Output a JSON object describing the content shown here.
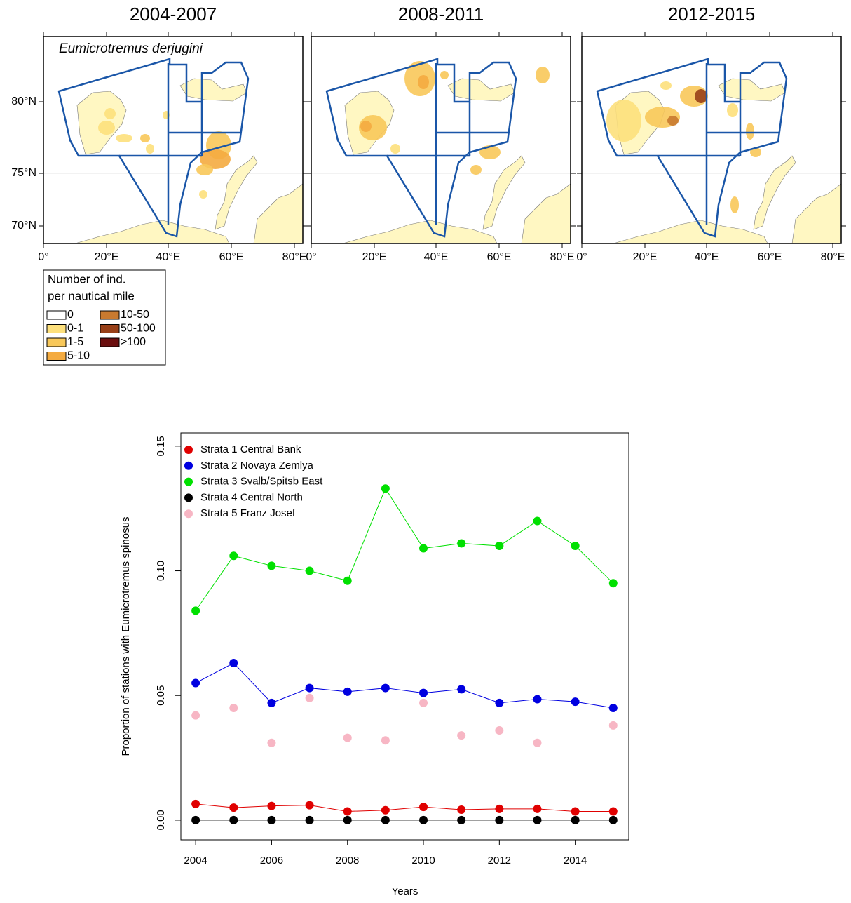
{
  "maps": {
    "panels": [
      {
        "title": "2004-2007"
      },
      {
        "title": "2008-2011"
      },
      {
        "title": "2012-2015"
      }
    ],
    "species": "Eumicrotremus derjugini",
    "lon_labels": [
      "0°",
      "20°E",
      "40°E",
      "60°E",
      "80°E"
    ],
    "lat_labels": [
      "80°N",
      "75°N",
      "70°N"
    ],
    "legend": {
      "title_lines": [
        "Number of ind.",
        "per nautical mile"
      ],
      "items": [
        {
          "label": "0",
          "color": "#ffffff"
        },
        {
          "label": "0-1",
          "color": "#fde07c"
        },
        {
          "label": "1-5",
          "color": "#f8c85a"
        },
        {
          "label": "5-10",
          "color": "#f4ab40"
        },
        {
          "label": "10-50",
          "color": "#c87a30"
        },
        {
          "label": "50-100",
          "color": "#984018"
        },
        {
          "label": ">100",
          "color": "#6b0e0e"
        }
      ]
    }
  },
  "chart_data": {
    "type": "line",
    "x_label": "Years",
    "y_label": "Proportion of stations with Eumicrotremus spinosus",
    "x": [
      2004,
      2005,
      2006,
      2007,
      2008,
      2009,
      2010,
      2011,
      2012,
      2013,
      2014,
      2015
    ],
    "xlim": [
      2003.61,
      2015.41
    ],
    "xticks": [
      2004,
      2006,
      2008,
      2010,
      2012,
      2014
    ],
    "ylim": [
      -0.0079,
      0.1553
    ],
    "yticks": [
      {
        "value": 0,
        "label": "0.00"
      },
      {
        "value": 0.05,
        "label": "0.05"
      },
      {
        "value": 0.1,
        "label": "0.10"
      },
      {
        "value": 0.15,
        "label": "0.15"
      }
    ],
    "legend_position": "top-left",
    "series": [
      {
        "name": "Strata 1 Central Bank",
        "color": "#e00000",
        "line": true,
        "values": [
          0.0065,
          0.005,
          0.0057,
          0.006,
          0.0035,
          0.004,
          0.0053,
          0.0042,
          0.0045,
          0.0045,
          0.0035,
          0.0035
        ]
      },
      {
        "name": "Strata 2 Novaya Zemlya",
        "color": "#0000e0",
        "line": true,
        "values": [
          0.055,
          0.063,
          0.047,
          0.053,
          0.0515,
          0.053,
          0.051,
          0.0525,
          0.047,
          0.0485,
          0.0475,
          0.045
        ]
      },
      {
        "name": "Strata 3 Svalb/Spitsb East",
        "color": "#00e000",
        "line": true,
        "values": [
          0.084,
          0.106,
          0.102,
          0.1,
          0.096,
          0.133,
          0.109,
          0.111,
          0.11,
          0.12,
          0.11,
          0.095
        ]
      },
      {
        "name": "Strata 4 Central North",
        "color": "#000000",
        "line": true,
        "values": [
          0,
          0,
          0,
          0,
          0,
          0,
          0,
          0,
          0,
          0,
          0,
          0
        ]
      },
      {
        "name": "Strata 5 Franz Josef",
        "color": "#f7b6c4",
        "line": false,
        "values": [
          0.042,
          0.045,
          0.031,
          0.049,
          0.033,
          0.032,
          0.047,
          0.034,
          0.036,
          0.031,
          null,
          0.038
        ]
      }
    ]
  }
}
